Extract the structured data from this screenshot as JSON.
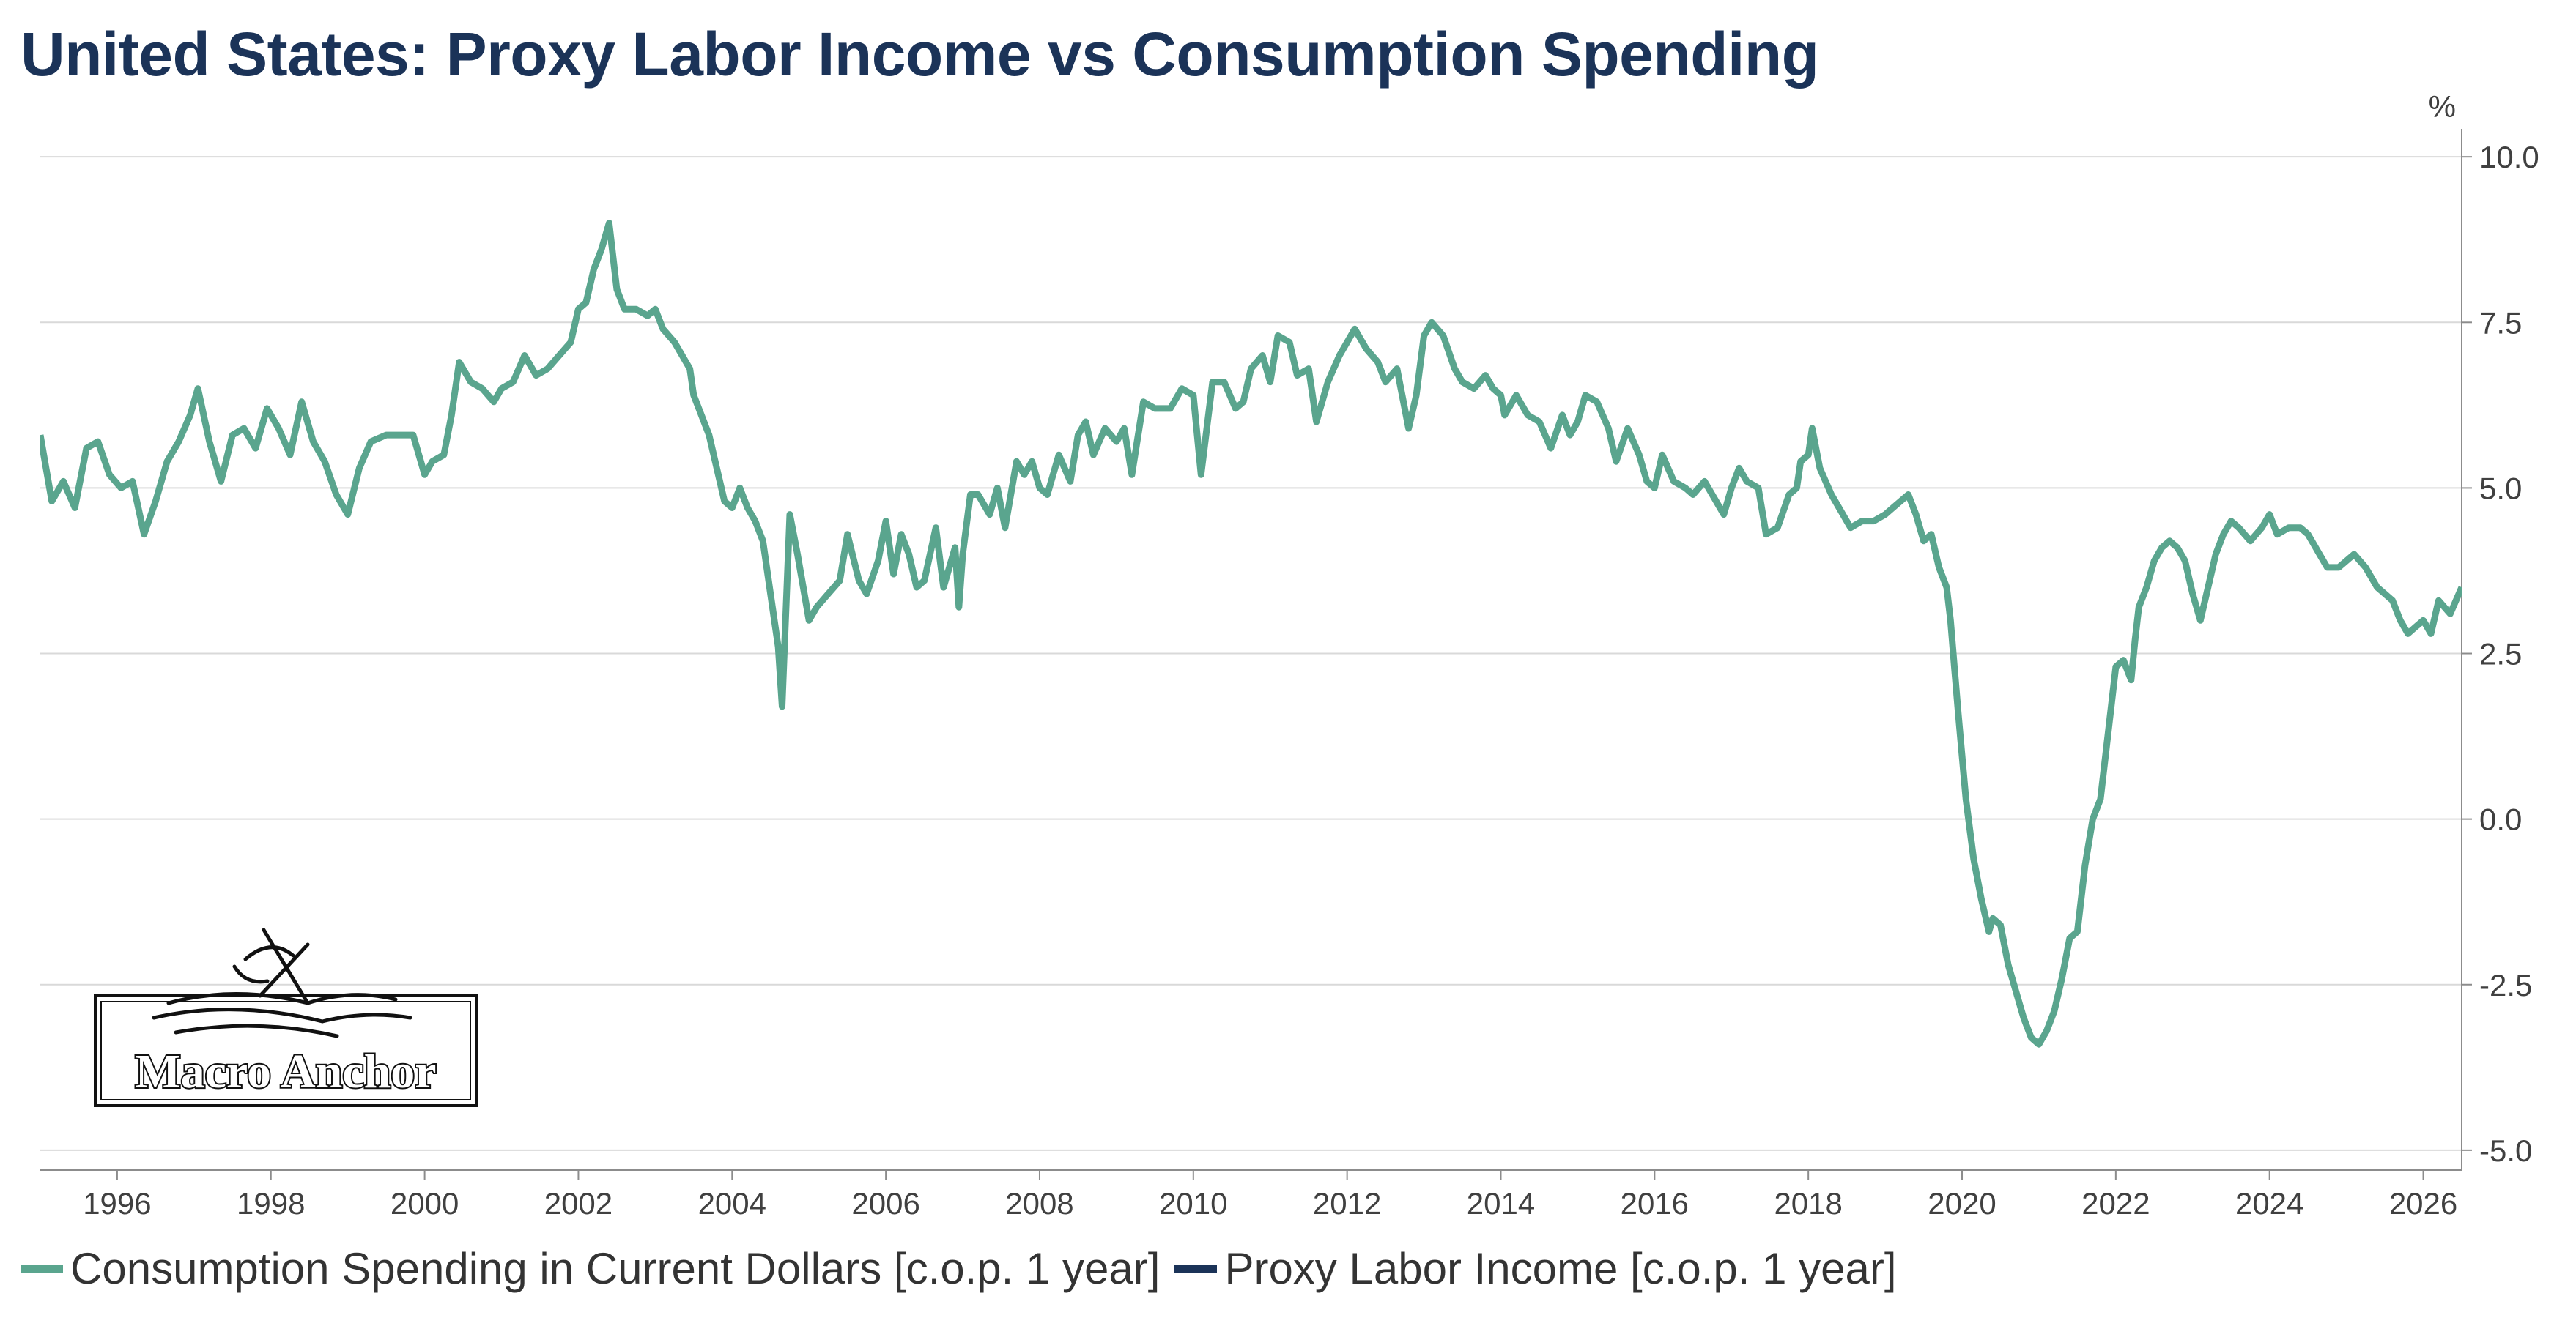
{
  "title": "United States: Proxy Labor Income vs Consumption Spending",
  "logo_text": "Macro Anchor",
  "colors": {
    "consumption": "#5aa58e",
    "labor": "#1b3358",
    "grid": "#d9d9d9",
    "axis": "#8c8c8c"
  },
  "chart_data": {
    "type": "line",
    "title": "United States: Proxy Labor Income vs Consumption Spending",
    "unit": "%",
    "xlim": [
      1995.0,
      2026.5
    ],
    "ylim": [
      -5.3,
      10.4
    ],
    "xticks": [
      1996,
      1998,
      2000,
      2002,
      2004,
      2006,
      2008,
      2010,
      2012,
      2014,
      2016,
      2018,
      2020,
      2022,
      2024,
      2026
    ],
    "xtick_labels": [
      "1996",
      "1998",
      "2000",
      "2002",
      "2004",
      "2006",
      "2008",
      "2010",
      "2012",
      "2014",
      "2016",
      "2018",
      "2020",
      "2022",
      "2024",
      "2026"
    ],
    "yticks": [
      10.0,
      7.5,
      5.0,
      2.5,
      0.0,
      -2.5,
      -5.0
    ],
    "ytick_labels": [
      "10.0",
      "7.5",
      "5.0",
      "2.5",
      "0.0",
      "-2.5",
      "-5.0"
    ],
    "grid": "horizontal",
    "y_axis_side": "right",
    "legend_position": "bottom",
    "series": [
      {
        "name": "Consumption Spending in Current Dollars [c.o.p. 1 year]",
        "color": "#5aa58e",
        "points": [
          [
            1995.0,
            5.8
          ],
          [
            1995.15,
            4.8
          ],
          [
            1995.3,
            5.1
          ],
          [
            1995.45,
            4.7
          ],
          [
            1995.6,
            5.6
          ],
          [
            1995.75,
            5.7
          ],
          [
            1995.9,
            5.2
          ],
          [
            1996.05,
            5.0
          ],
          [
            1996.2,
            5.1
          ],
          [
            1996.35,
            4.3
          ],
          [
            1996.5,
            4.8
          ],
          [
            1996.65,
            5.4
          ],
          [
            1996.8,
            5.7
          ],
          [
            1996.95,
            6.1
          ],
          [
            1997.05,
            6.5
          ],
          [
            1997.2,
            5.7
          ],
          [
            1997.35,
            5.1
          ],
          [
            1997.5,
            5.8
          ],
          [
            1997.65,
            5.9
          ],
          [
            1997.8,
            5.6
          ],
          [
            1997.95,
            6.2
          ],
          [
            1998.1,
            5.9
          ],
          [
            1998.25,
            5.5
          ],
          [
            1998.4,
            6.3
          ],
          [
            1998.55,
            5.7
          ],
          [
            1998.7,
            5.4
          ],
          [
            1998.85,
            4.9
          ],
          [
            1999.0,
            4.6
          ],
          [
            1999.15,
            5.3
          ],
          [
            1999.3,
            5.7
          ],
          [
            1999.5,
            5.8
          ],
          [
            1999.7,
            5.8
          ],
          [
            1999.85,
            5.8
          ],
          [
            2000.0,
            5.2
          ],
          [
            2000.1,
            5.4
          ],
          [
            2000.25,
            5.5
          ],
          [
            2000.35,
            6.1
          ],
          [
            2000.45,
            6.9
          ],
          [
            2000.6,
            6.6
          ],
          [
            2000.75,
            6.5
          ],
          [
            2000.9,
            6.3
          ],
          [
            2001.0,
            6.5
          ],
          [
            2001.15,
            6.6
          ],
          [
            2001.3,
            7.0
          ],
          [
            2001.45,
            6.7
          ],
          [
            2001.6,
            6.8
          ],
          [
            2001.75,
            7.0
          ],
          [
            2001.9,
            7.2
          ],
          [
            2002.0,
            7.7
          ],
          [
            2002.1,
            7.8
          ],
          [
            2002.2,
            8.3
          ],
          [
            2002.3,
            8.6
          ],
          [
            2002.4,
            9.0
          ],
          [
            2002.5,
            8.0
          ],
          [
            2002.6,
            7.7
          ],
          [
            2002.75,
            7.7
          ],
          [
            2002.9,
            7.6
          ],
          [
            2003.0,
            7.7
          ],
          [
            2003.1,
            7.4
          ],
          [
            2003.25,
            7.2
          ],
          [
            2003.35,
            7.0
          ],
          [
            2003.45,
            6.8
          ],
          [
            2003.5,
            6.4
          ],
          [
            2003.6,
            6.1
          ],
          [
            2003.7,
            5.8
          ],
          [
            2003.8,
            5.3
          ],
          [
            2003.9,
            4.8
          ],
          [
            2004.0,
            4.7
          ],
          [
            2004.1,
            5.0
          ],
          [
            2004.2,
            4.7
          ],
          [
            2004.3,
            4.5
          ],
          [
            2004.4,
            4.2
          ],
          [
            2004.5,
            3.4
          ],
          [
            2004.6,
            2.6
          ],
          [
            2004.65,
            1.7
          ],
          [
            2004.75,
            4.6
          ],
          [
            2004.85,
            4.0
          ],
          [
            2005.0,
            3.0
          ],
          [
            2005.1,
            3.2
          ],
          [
            2005.25,
            3.4
          ],
          [
            2005.4,
            3.6
          ],
          [
            2005.5,
            4.3
          ],
          [
            2005.65,
            3.6
          ],
          [
            2005.75,
            3.4
          ],
          [
            2005.9,
            3.9
          ],
          [
            2006.0,
            4.5
          ],
          [
            2006.1,
            3.7
          ],
          [
            2006.2,
            4.3
          ],
          [
            2006.3,
            4.0
          ],
          [
            2006.4,
            3.5
          ],
          [
            2006.5,
            3.6
          ],
          [
            2006.65,
            4.4
          ],
          [
            2006.75,
            3.5
          ],
          [
            2006.9,
            4.1
          ],
          [
            2006.95,
            3.2
          ],
          [
            2007.0,
            4.0
          ],
          [
            2007.1,
            4.9
          ],
          [
            2007.2,
            4.9
          ],
          [
            2007.35,
            4.6
          ],
          [
            2007.45,
            5.0
          ],
          [
            2007.55,
            4.4
          ],
          [
            2007.7,
            5.4
          ],
          [
            2007.8,
            5.2
          ],
          [
            2007.9,
            5.4
          ],
          [
            2008.0,
            5.0
          ],
          [
            2008.1,
            4.9
          ],
          [
            2008.25,
            5.5
          ],
          [
            2008.4,
            5.1
          ],
          [
            2008.5,
            5.8
          ],
          [
            2008.6,
            6.0
          ],
          [
            2008.7,
            5.5
          ],
          [
            2008.85,
            5.9
          ],
          [
            2009.0,
            5.7
          ],
          [
            2009.1,
            5.9
          ],
          [
            2009.2,
            5.2
          ],
          [
            2009.35,
            6.3
          ],
          [
            2009.5,
            6.2
          ],
          [
            2009.7,
            6.2
          ],
          [
            2009.85,
            6.5
          ],
          [
            2010.0,
            6.4
          ],
          [
            2010.1,
            5.2
          ],
          [
            2010.25,
            6.6
          ],
          [
            2010.4,
            6.6
          ],
          [
            2010.55,
            6.2
          ],
          [
            2010.65,
            6.3
          ],
          [
            2010.75,
            6.8
          ],
          [
            2010.9,
            7.0
          ],
          [
            2011.0,
            6.6
          ],
          [
            2011.1,
            7.3
          ],
          [
            2011.25,
            7.2
          ],
          [
            2011.35,
            6.7
          ],
          [
            2011.5,
            6.8
          ],
          [
            2011.6,
            6.0
          ],
          [
            2011.75,
            6.6
          ],
          [
            2011.9,
            7.0
          ],
          [
            2012.0,
            7.2
          ],
          [
            2012.1,
            7.4
          ],
          [
            2012.25,
            7.1
          ],
          [
            2012.4,
            6.9
          ],
          [
            2012.5,
            6.6
          ],
          [
            2012.65,
            6.8
          ],
          [
            2012.8,
            5.9
          ],
          [
            2012.9,
            6.4
          ],
          [
            2013.0,
            7.3
          ],
          [
            2013.1,
            7.5
          ],
          [
            2013.25,
            7.3
          ],
          [
            2013.4,
            6.8
          ],
          [
            2013.5,
            6.6
          ],
          [
            2013.65,
            6.5
          ],
          [
            2013.8,
            6.7
          ],
          [
            2013.9,
            6.5
          ],
          [
            2014.0,
            6.4
          ],
          [
            2014.05,
            6.1
          ],
          [
            2014.2,
            6.4
          ],
          [
            2014.35,
            6.1
          ],
          [
            2014.5,
            6.0
          ],
          [
            2014.65,
            5.6
          ],
          [
            2014.8,
            6.1
          ],
          [
            2014.9,
            5.8
          ],
          [
            2015.0,
            6.0
          ],
          [
            2015.1,
            6.4
          ],
          [
            2015.25,
            6.3
          ],
          [
            2015.4,
            5.9
          ],
          [
            2015.5,
            5.4
          ],
          [
            2015.65,
            5.9
          ],
          [
            2015.8,
            5.5
          ],
          [
            2015.9,
            5.1
          ],
          [
            2016.0,
            5.0
          ],
          [
            2016.1,
            5.5
          ],
          [
            2016.25,
            5.1
          ],
          [
            2016.4,
            5.0
          ],
          [
            2016.5,
            4.9
          ],
          [
            2016.65,
            5.1
          ],
          [
            2016.8,
            4.8
          ],
          [
            2016.9,
            4.6
          ],
          [
            2017.0,
            5.0
          ],
          [
            2017.1,
            5.3
          ],
          [
            2017.2,
            5.1
          ],
          [
            2017.35,
            5.0
          ],
          [
            2017.45,
            4.3
          ],
          [
            2017.6,
            4.4
          ],
          [
            2017.75,
            4.9
          ],
          [
            2017.85,
            5.0
          ],
          [
            2017.9,
            5.4
          ],
          [
            2018.0,
            5.5
          ],
          [
            2018.05,
            5.9
          ],
          [
            2018.15,
            5.3
          ],
          [
            2018.3,
            4.9
          ],
          [
            2018.45,
            4.6
          ],
          [
            2018.55,
            4.4
          ],
          [
            2018.7,
            4.5
          ],
          [
            2018.85,
            4.5
          ],
          [
            2019.0,
            4.6
          ],
          [
            2019.1,
            4.7
          ],
          [
            2019.2,
            4.8
          ],
          [
            2019.3,
            4.9
          ],
          [
            2019.4,
            4.6
          ],
          [
            2019.5,
            4.2
          ],
          [
            2019.6,
            4.3
          ],
          [
            2019.7,
            3.8
          ],
          [
            2019.8,
            3.5
          ],
          [
            2019.85,
            3.0
          ],
          [
            2019.9,
            2.3
          ],
          [
            2019.95,
            1.6
          ],
          [
            2020.05,
            0.3
          ],
          [
            2020.15,
            -0.6
          ],
          [
            2020.25,
            -1.2
          ],
          [
            2020.35,
            -1.7
          ],
          [
            2020.4,
            -1.5
          ],
          [
            2020.5,
            -1.6
          ],
          [
            2020.6,
            -2.2
          ],
          [
            2020.7,
            -2.6
          ],
          [
            2020.8,
            -3.0
          ],
          [
            2020.9,
            -3.3
          ],
          [
            2021.0,
            -3.4
          ],
          [
            2021.1,
            -3.2
          ],
          [
            2021.2,
            -2.9
          ],
          [
            2021.3,
            -2.4
          ],
          [
            2021.4,
            -1.8
          ],
          [
            2021.5,
            -1.7
          ],
          [
            2021.6,
            -0.7
          ],
          [
            2021.7,
            0.0
          ],
          [
            2021.8,
            0.3
          ],
          [
            2021.9,
            1.3
          ],
          [
            2022.0,
            2.3
          ],
          [
            2022.1,
            2.4
          ],
          [
            2022.2,
            2.1
          ],
          [
            2022.25,
            2.7
          ],
          [
            2022.3,
            3.2
          ],
          [
            2022.4,
            3.5
          ],
          [
            2022.5,
            3.9
          ],
          [
            2022.6,
            4.1
          ],
          [
            2022.7,
            4.2
          ],
          [
            2022.8,
            4.1
          ],
          [
            2022.9,
            3.9
          ],
          [
            2023.0,
            3.4
          ],
          [
            2023.1,
            3.0
          ],
          [
            2023.2,
            3.5
          ],
          [
            2023.3,
            4.0
          ],
          [
            2023.4,
            4.3
          ],
          [
            2023.5,
            4.5
          ],
          [
            2023.6,
            4.4
          ],
          [
            2023.75,
            4.2
          ],
          [
            2023.9,
            4.4
          ],
          [
            2024.0,
            4.6
          ],
          [
            2024.1,
            4.3
          ],
          [
            2024.25,
            4.4
          ],
          [
            2024.4,
            4.4
          ],
          [
            2024.5,
            4.3
          ],
          [
            2024.65,
            4.0
          ],
          [
            2024.75,
            3.8
          ],
          [
            2024.9,
            3.8
          ],
          [
            2025.0,
            3.9
          ],
          [
            2025.1,
            4.0
          ],
          [
            2025.25,
            3.8
          ],
          [
            2025.4,
            3.5
          ],
          [
            2025.5,
            3.4
          ],
          [
            2025.6,
            3.3
          ],
          [
            2025.7,
            3.0
          ],
          [
            2025.8,
            2.8
          ],
          [
            2025.9,
            2.9
          ],
          [
            2026.0,
            3.0
          ],
          [
            2026.1,
            2.8
          ],
          [
            2026.2,
            3.3
          ],
          [
            2026.35,
            3.1
          ],
          [
            2026.5,
            3.5
          ]
        ]
      },
      {
        "name": "Proxy Labor Income  [c.o.p. 1 year]",
        "color": "#1b3358",
        "points": []
      }
    ]
  }
}
